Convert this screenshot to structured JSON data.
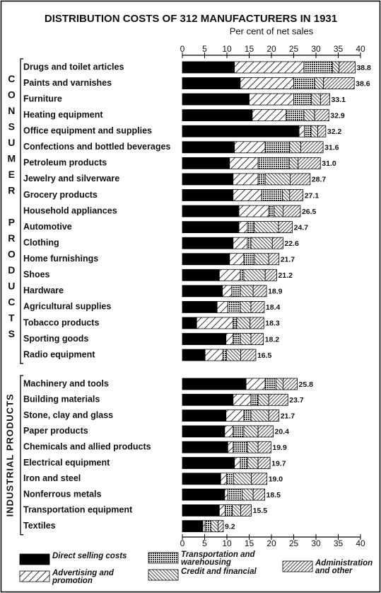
{
  "chart_data": {
    "type": "bar",
    "orientation": "horizontal",
    "stacked": true,
    "title": "DISTRIBUTION COSTS OF 312 MANUFACTURERS IN 1931",
    "xlabel": "Per cent of net sales",
    "xlim": [
      0,
      40
    ],
    "xticks": [
      0,
      5,
      10,
      15,
      20,
      25,
      30,
      35,
      40
    ],
    "series": [
      {
        "name": "Direct selling costs",
        "color": "#000000",
        "pattern": "solid"
      },
      {
        "name": "Advertising and promotion",
        "color": "#000000",
        "pattern": "diagonal"
      },
      {
        "name": "Transportation and warehousing",
        "color": "#000000",
        "pattern": "crosshatch"
      },
      {
        "name": "Credit and financial",
        "color": "#000000",
        "pattern": "backdiagonal"
      },
      {
        "name": "Administration and other",
        "color": "#000000",
        "pattern": "dense-diagonal"
      }
    ],
    "groups": [
      {
        "name": "CONSUMER PRODUCTS",
        "categories": [
          "Drugs and toilet articles",
          "Paints and varnishes",
          "Furniture",
          "Heating equipment",
          "Office equipment and supplies",
          "Confections and bottled beverages",
          "Petroleum products",
          "Jewelry and silverware",
          "Grocery products",
          "Household appliances",
          "Automotive",
          "Clothing",
          "Home furnishings",
          "Shoes",
          "Hardware",
          "Agricultural supplies",
          "Tobacco products",
          "Sporting goods",
          "Radio equipment"
        ],
        "series": [
          {
            "values": [
              11.7,
              13,
              15,
              15.7,
              26.2,
              11.7,
              10.6,
              11.4,
              11.4,
              12.7,
              12.7,
              11.4,
              10.6,
              8.3,
              9,
              7.8,
              3.2,
              9.8,
              5.1
            ]
          },
          {
            "values": [
              15.6,
              12,
              10,
              7.6,
              1.2,
              6.9,
              6.4,
              5.6,
              6.4,
              6.7,
              1.9,
              3.2,
              3.2,
              4.7,
              2.1,
              2.4,
              8.2,
              1.6,
              4
            ]
          },
          {
            "values": [
              6.4,
              4.7,
              4,
              4,
              1.5,
              5.5,
              7,
              1.6,
              4.7,
              1.2,
              1.5,
              0.8,
              2.4,
              0.8,
              1.9,
              2.8,
              0.8,
              1.6,
              0.8
            ]
          },
          {
            "values": [
              1.5,
              2,
              2,
              2.4,
              1.5,
              2.5,
              2,
              5.6,
              1.6,
              2,
              5.5,
              4.8,
              3.2,
              4.8,
              2.9,
              2.4,
              3,
              2.4,
              3.2
            ]
          },
          {
            "values": [
              3.6,
              6.9,
              2.1,
              3.2,
              1.8,
              5,
              5,
              4.5,
              3,
              3.9,
              3.1,
              2.4,
              2.3,
              2.6,
              3,
              3,
              3.1,
              2.8,
              3.4
            ]
          }
        ],
        "totals": [
          38.8,
          38.6,
          33.1,
          32.9,
          32.2,
          31.6,
          31.0,
          28.7,
          27.1,
          26.5,
          24.7,
          22.6,
          21.7,
          21.2,
          18.9,
          18.4,
          18.3,
          18.2,
          16.5
        ],
        "total_labels": [
          "38.8",
          "38.6",
          "33.1",
          "32.9",
          "32.2",
          "31.6",
          "31.0",
          "28.7",
          "27.1",
          "26.5",
          "24.7",
          "22.6",
          "21.7",
          "21.2",
          "18.9",
          "18.4",
          "18.3",
          "18.2",
          "16.5"
        ]
      },
      {
        "name": "INDUSTRIAL PRODUCTS",
        "categories": [
          "Machinery and tools",
          "Building materials",
          "Stone, clay and glass",
          "Paper products",
          "Chemicals and allied products",
          "Electrical equipment",
          "Iron and steel",
          "Nonferrous metals",
          "Transportation equipment",
          "Textiles"
        ],
        "series": [
          {
            "values": [
              14.3,
              11.4,
              9.8,
              9.5,
              10.2,
              11.7,
              8.6,
              9.5,
              8.3,
              4.6
            ]
          },
          {
            "values": [
              4.3,
              4,
              4,
              1.9,
              1.2,
              1.3,
              1.3,
              0.7,
              1.3,
              0.5
            ]
          },
          {
            "values": [
              2.4,
              1.6,
              1.6,
              2.4,
              3.2,
              1.6,
              1.6,
              3.2,
              1.6,
              1.3
            ]
          },
          {
            "values": [
              1.6,
              2.4,
              4,
              3.2,
              2.4,
              2.4,
              4,
              2.5,
              1.9,
              1.6
            ]
          },
          {
            "values": [
              3.2,
              4.3,
              2.3,
              3.4,
              2.9,
              2.7,
              3.5,
              2.6,
              2.4,
              1.2
            ]
          }
        ],
        "totals": [
          25.8,
          23.7,
          21.7,
          20.4,
          19.9,
          19.7,
          19.0,
          18.5,
          15.5,
          9.2
        ],
        "total_labels": [
          "25.8",
          "23.7",
          "21.7",
          "20.4",
          "19.9",
          "19.7",
          "19.0",
          "18.5",
          "15.5",
          "9.2"
        ]
      }
    ]
  }
}
